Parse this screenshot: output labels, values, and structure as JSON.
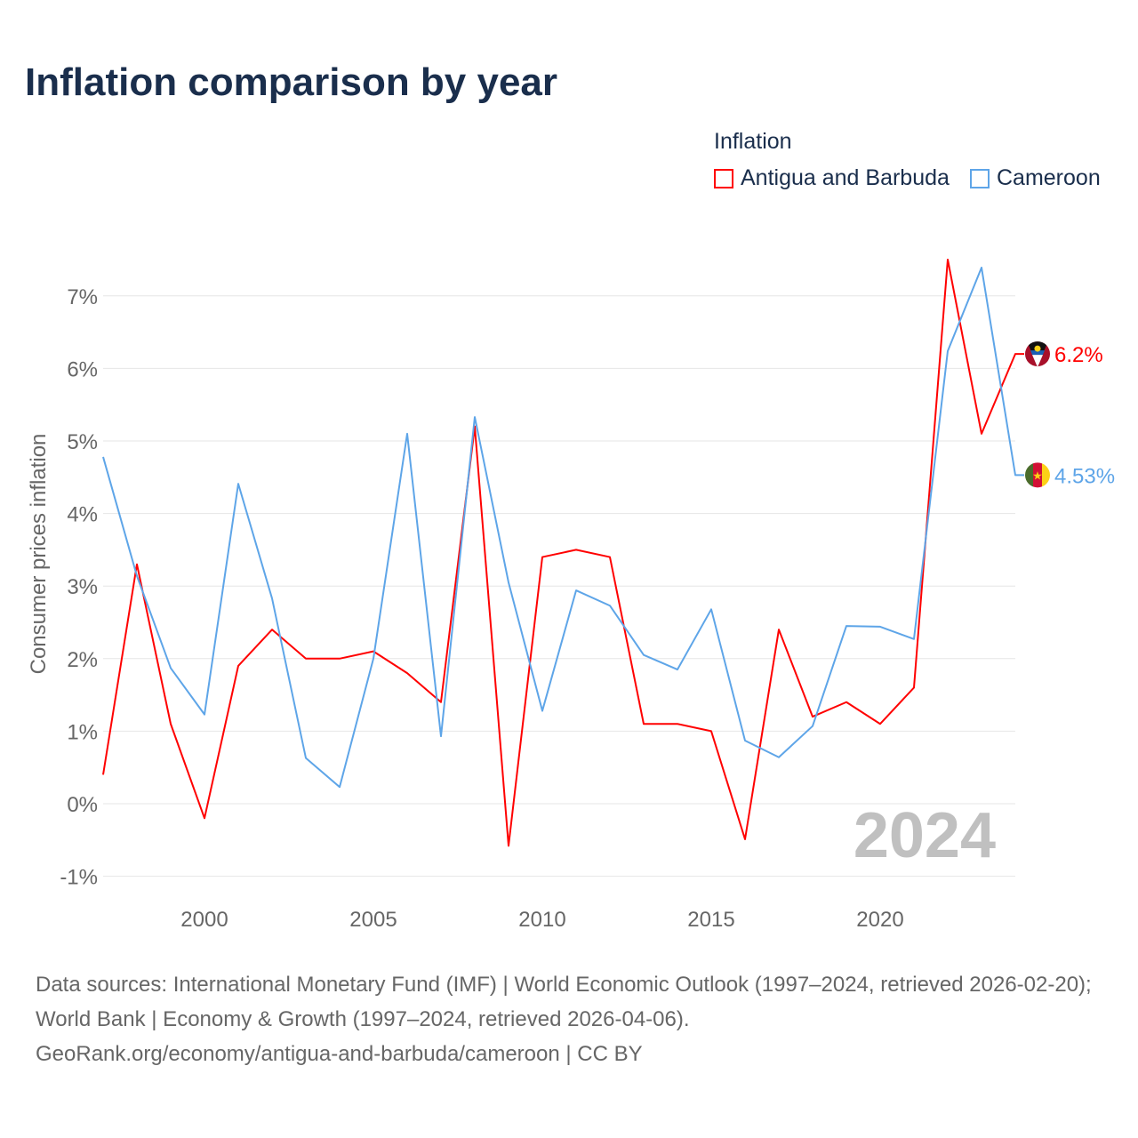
{
  "title": "Inflation comparison by year",
  "legend": {
    "title": "Inflation",
    "items": [
      "Antigua and Barbuda",
      "Cameroon"
    ]
  },
  "footer": {
    "line1": "Data sources: International Monetary Fund (IMF) | World Economic Outlook (1997–2024, retrieved 2026-02-20); World Bank | Economy & Growth (1997–2024, retrieved 2026-04-06).",
    "line2": "GeoRank.org/economy/antigua-and-barbuda/cameroon | CC BY"
  },
  "chart_data": {
    "type": "line",
    "title": "Inflation comparison by year",
    "ylabel": "Consumer prices inflation",
    "xlabel": "",
    "ylim": [
      -1.2,
      7.6
    ],
    "xlim": [
      1997,
      2024
    ],
    "yticks": [
      "-1%",
      "0%",
      "1%",
      "2%",
      "3%",
      "4%",
      "5%",
      "6%",
      "7%"
    ],
    "xticks": [
      "2000",
      "2005",
      "2010",
      "2015",
      "2020"
    ],
    "year_watermark": "2024",
    "x": [
      1997,
      1998,
      1999,
      2000,
      2001,
      2002,
      2003,
      2004,
      2005,
      2006,
      2007,
      2008,
      2009,
      2010,
      2011,
      2012,
      2013,
      2014,
      2015,
      2016,
      2017,
      2018,
      2019,
      2020,
      2021,
      2022,
      2023,
      2024
    ],
    "series": [
      {
        "name": "Antigua and Barbuda",
        "color": "#ff0000",
        "end_label": "6.2%",
        "values": [
          0.4,
          3.3,
          1.1,
          -0.2,
          1.9,
          2.4,
          2.0,
          2.0,
          2.1,
          1.8,
          1.4,
          5.2,
          -0.58,
          3.4,
          3.5,
          3.4,
          1.1,
          1.1,
          1.0,
          -0.49,
          2.4,
          1.2,
          1.4,
          1.1,
          1.6,
          7.5,
          5.1,
          6.2
        ]
      },
      {
        "name": "Cameroon",
        "color": "#5ea5e8",
        "end_label": "4.53%",
        "values": [
          4.78,
          3.14,
          1.87,
          1.23,
          4.41,
          2.83,
          0.63,
          0.23,
          2.0,
          5.1,
          0.93,
          5.33,
          3.05,
          1.28,
          2.94,
          2.73,
          2.05,
          1.85,
          2.68,
          0.87,
          0.64,
          1.07,
          2.45,
          2.44,
          2.27,
          6.24,
          7.39,
          4.53
        ]
      }
    ]
  }
}
